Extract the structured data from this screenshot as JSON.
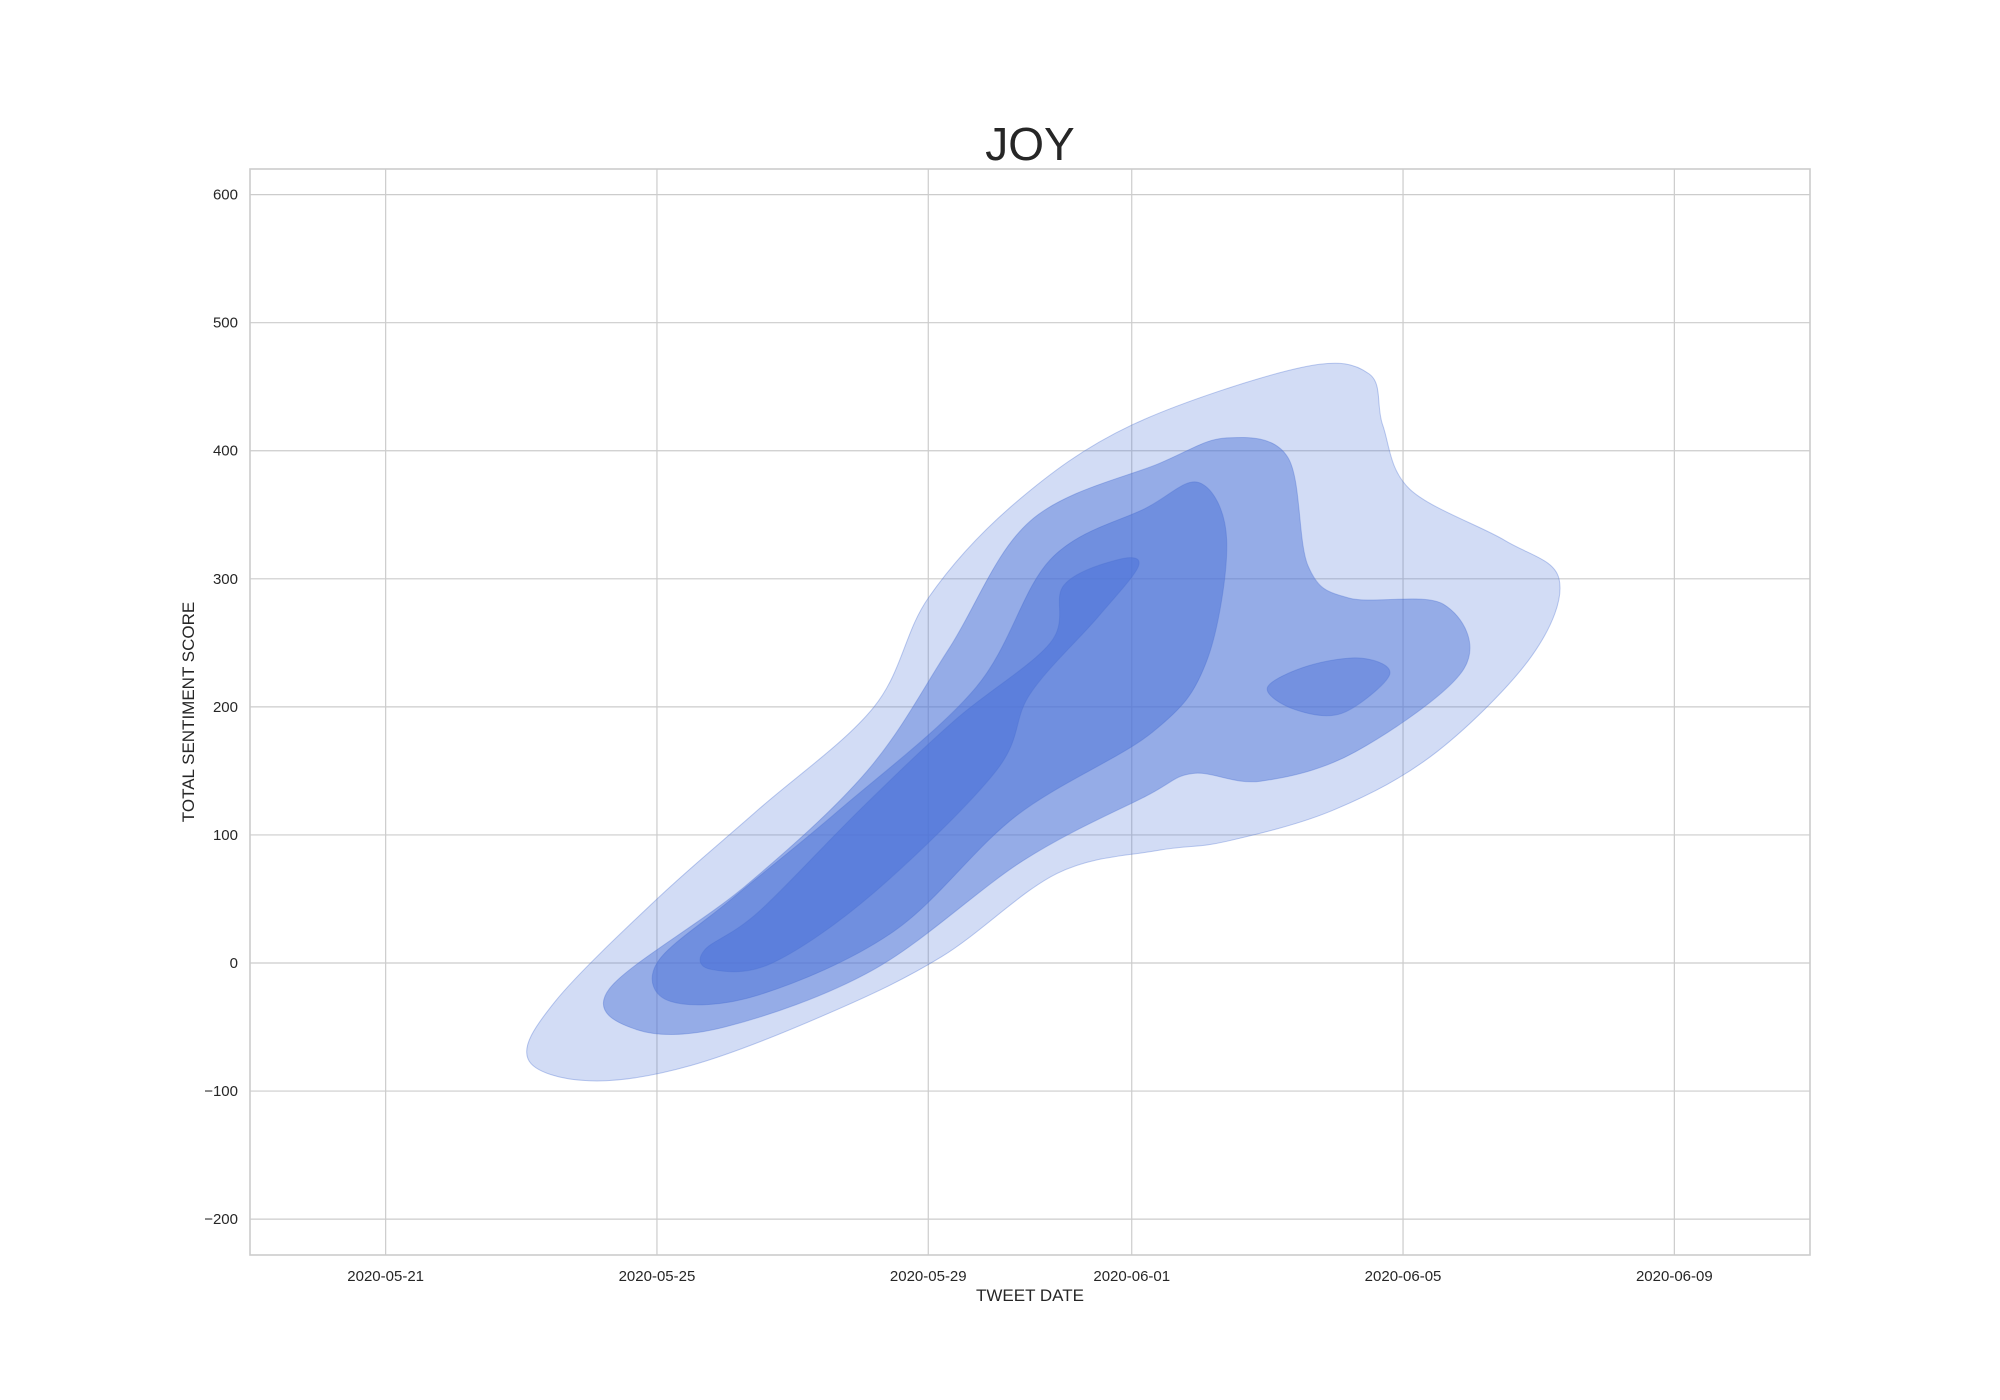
{
  "chart_data": {
    "type": "kde_contour",
    "title": "JOY",
    "xlabel": "TWEET DATE",
    "ylabel": "TOTAL SENTIMENT SCORE",
    "xlim": [
      "2020-05-19",
      "2020-06-11"
    ],
    "ylim": [
      -228,
      620
    ],
    "x_ticks": [
      "2020-05-21",
      "2020-05-25",
      "2020-05-29",
      "2020-06-01",
      "2020-06-05",
      "2020-06-09"
    ],
    "y_ticks": [
      -200,
      -100,
      0,
      100,
      200,
      300,
      400,
      500,
      600
    ],
    "grid": true,
    "legend": "none",
    "fill_color": "#4c72d8",
    "levels": [
      {
        "name": "level-1",
        "fill_opacity": 0.25,
        "points": [
          [
            "2020-05-24.0",
            -92
          ],
          [
            "2020-05-25.5",
            -80
          ],
          [
            "2020-05-27.5",
            -40
          ],
          [
            "2020-05-29.2",
            5
          ],
          [
            "2020-05-30.9",
            70
          ],
          [
            "2020-06-01.4",
            88
          ],
          [
            "2020-06-02.4",
            95
          ],
          [
            "2020-06-04.0",
            120
          ],
          [
            "2020-06-05.5",
            165
          ],
          [
            "2020-06-06.9",
            240
          ],
          [
            "2020-06-07.3",
            300
          ],
          [
            "2020-06-06.5",
            330
          ],
          [
            "2020-06-05.1",
            370
          ],
          [
            "2020-06-04.7",
            420
          ],
          [
            "2020-06-04.5",
            460
          ],
          [
            "2020-06-03.5",
            465
          ],
          [
            "2020-06-01.0",
            420
          ],
          [
            "2020-05-30.3",
            360
          ],
          [
            "2020-05-29.0",
            285
          ],
          [
            "2020-05-28.2",
            200
          ],
          [
            "2020-05-26.5",
            120
          ],
          [
            "2020-05-25.0",
            50
          ],
          [
            "2020-05-23.5",
            -30
          ],
          [
            "2020-05-23.1",
            -75
          ]
        ]
      },
      {
        "name": "level-2",
        "fill_opacity": 0.45,
        "points": [
          [
            "2020-05-24.7",
            -52
          ],
          [
            "2020-05-26.0",
            -50
          ],
          [
            "2020-05-28.2",
            -5
          ],
          [
            "2020-05-30.4",
            80
          ],
          [
            "2020-06-01.2",
            130
          ],
          [
            "2020-06-01.9",
            148
          ],
          [
            "2020-06-02.9",
            142
          ],
          [
            "2020-06-04.3",
            165
          ],
          [
            "2020-06-05.9",
            230
          ],
          [
            "2020-06-05.6",
            280
          ],
          [
            "2020-06-04.2",
            285
          ],
          [
            "2020-06-03.6",
            310
          ],
          [
            "2020-06-03.3",
            395
          ],
          [
            "2020-06-02.4",
            410
          ],
          [
            "2020-06-01.4",
            390
          ],
          [
            "2020-05-30.5",
            345
          ],
          [
            "2020-05-29.3",
            245
          ],
          [
            "2020-05-28.1",
            150
          ],
          [
            "2020-05-26.3",
            60
          ],
          [
            "2020-05-24.3",
            -20
          ]
        ]
      },
      {
        "name": "level-3",
        "fill_opacity": 0.5,
        "points": [
          [
            "2020-05-25.2",
            -30
          ],
          [
            "2020-05-26.5",
            -25
          ],
          [
            "2020-05-28.5",
            25
          ],
          [
            "2020-05-30.3",
            115
          ],
          [
            "2020-06-01.3",
            180
          ],
          [
            "2020-06-02.1",
            235
          ],
          [
            "2020-06-02.4",
            330
          ],
          [
            "2020-06-02.0",
            375
          ],
          [
            "2020-06-01.2",
            355
          ],
          [
            "2020-05-30.8",
            315
          ],
          [
            "2020-05-29.7",
            215
          ],
          [
            "2020-05-27.7",
            120
          ],
          [
            "2020-05-26.1",
            50
          ],
          [
            "2020-05-25.0",
            0
          ]
        ]
      },
      {
        "name": "level-4",
        "fill_opacity": 0.55,
        "points": [
          [
            "2020-05-25.8",
            -5
          ],
          [
            "2020-05-26.7",
            0
          ],
          [
            "2020-05-28.2",
            55
          ],
          [
            "2020-05-30.0",
            150
          ],
          [
            "2020-05-30.5",
            210
          ],
          [
            "2020-06-00.5",
            270
          ],
          [
            "2020-06-01.1",
            310
          ],
          [
            "2020-06-00.8",
            315
          ],
          [
            "2020-05-31.0",
            295
          ],
          [
            "2020-05-30.8",
            250
          ],
          [
            "2020-05-29.4",
            190
          ],
          [
            "2020-05-28.0",
            120
          ],
          [
            "2020-05-26.5",
            40
          ],
          [
            "2020-05-25.7",
            10
          ]
        ]
      },
      {
        "name": "level-5",
        "fill_opacity": 0.45,
        "points": [
          [
            "2020-06-03.4",
            198
          ],
          [
            "2020-06-04.1",
            195
          ],
          [
            "2020-06-04.8",
            225
          ],
          [
            "2020-06-04.4",
            238
          ],
          [
            "2020-06-03.6",
            232
          ],
          [
            "2020-06-03.0",
            215
          ]
        ]
      }
    ]
  }
}
